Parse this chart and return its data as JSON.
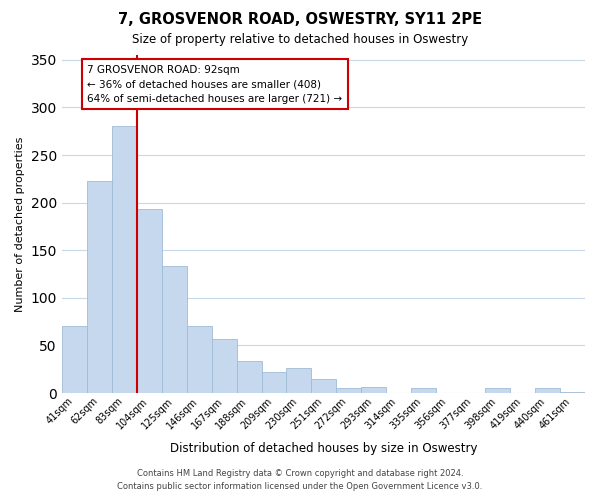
{
  "title": "7, GROSVENOR ROAD, OSWESTRY, SY11 2PE",
  "subtitle": "Size of property relative to detached houses in Oswestry",
  "xlabel": "Distribution of detached houses by size in Oswestry",
  "ylabel": "Number of detached properties",
  "categories": [
    "41sqm",
    "62sqm",
    "83sqm",
    "104sqm",
    "125sqm",
    "146sqm",
    "167sqm",
    "188sqm",
    "209sqm",
    "230sqm",
    "251sqm",
    "272sqm",
    "293sqm",
    "314sqm",
    "335sqm",
    "356sqm",
    "377sqm",
    "398sqm",
    "419sqm",
    "440sqm",
    "461sqm"
  ],
  "values": [
    70,
    223,
    280,
    193,
    134,
    70,
    57,
    34,
    22,
    26,
    15,
    5,
    6,
    0,
    5,
    0,
    0,
    5,
    0,
    5,
    1
  ],
  "bar_color": "#c5d8ed",
  "bar_edge_color": "#a0bcd6",
  "marker_line_color": "#cc0000",
  "annotation_title": "7 GROSVENOR ROAD: 92sqm",
  "annotation_line1": "← 36% of detached houses are smaller (408)",
  "annotation_line2": "64% of semi-detached houses are larger (721) →",
  "annotation_box_facecolor": "#ffffff",
  "annotation_box_edgecolor": "#cc0000",
  "ylim": [
    0,
    355
  ],
  "yticks": [
    0,
    50,
    100,
    150,
    200,
    250,
    300,
    350
  ],
  "footer1": "Contains HM Land Registry data © Crown copyright and database right 2024.",
  "footer2": "Contains public sector information licensed under the Open Government Licence v3.0.",
  "bg_color": "#ffffff",
  "grid_color": "#c8d8e8"
}
